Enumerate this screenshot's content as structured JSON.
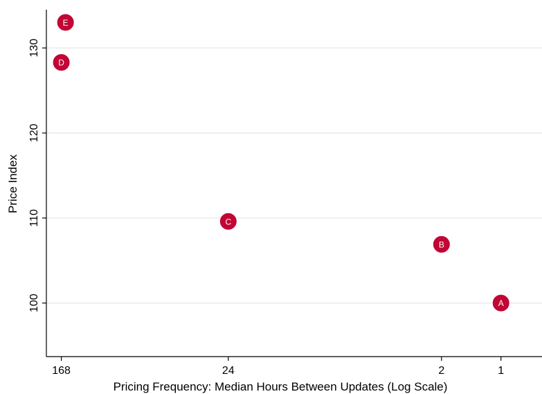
{
  "chart_data": {
    "type": "scatter",
    "title": "",
    "xlabel": "Pricing Frequency: Median Hours Between Updates (Log Scale)",
    "ylabel": "Price Index",
    "x_scale": "log-reversed",
    "xlim": [
      200,
      0.62
    ],
    "ylim": [
      93.7,
      134.5
    ],
    "x_ticks": [
      168,
      24,
      2,
      1
    ],
    "y_ticks": [
      100,
      110,
      120,
      130
    ],
    "grid": "horizontal",
    "marker_color": "#c10534",
    "points": [
      {
        "label": "A",
        "x": 1,
        "y": 100.0
      },
      {
        "label": "B",
        "x": 2,
        "y": 106.9
      },
      {
        "label": "C",
        "x": 24,
        "y": 109.6
      },
      {
        "label": "D",
        "x": 168,
        "y": 128.3
      },
      {
        "label": "E",
        "x": 160,
        "y": 133.0
      }
    ]
  }
}
